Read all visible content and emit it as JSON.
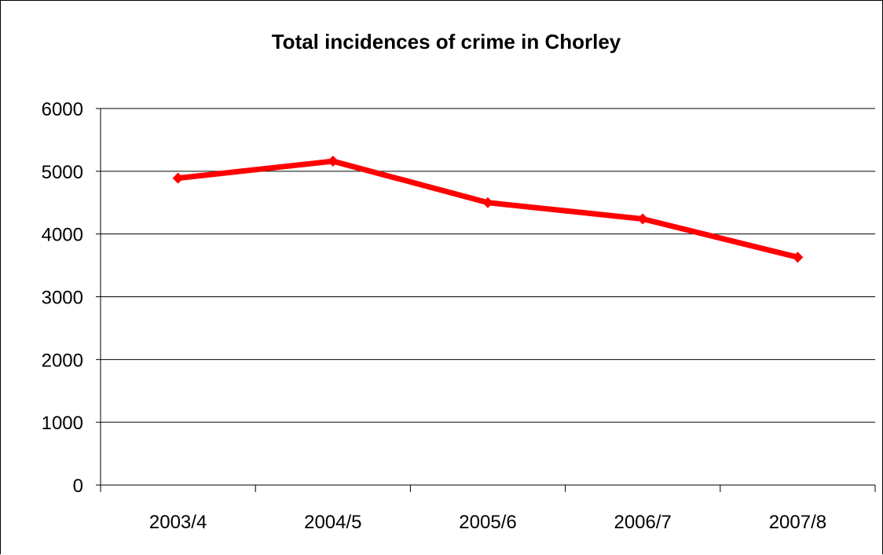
{
  "chart_data": {
    "type": "line",
    "title": "Total incidences of crime in Chorley",
    "xlabel": "",
    "ylabel": "",
    "categories": [
      "2003/4",
      "2004/5",
      "2005/6",
      "2006/7",
      "2007/8"
    ],
    "series": [
      {
        "values": [
          4890,
          5160,
          4500,
          4240,
          3630
        ],
        "color": "#ff0000"
      }
    ],
    "ylim": [
      0,
      6000
    ],
    "yticks": [
      0,
      1000,
      2000,
      3000,
      4000,
      5000,
      6000
    ],
    "grid": true,
    "legend": "none"
  }
}
